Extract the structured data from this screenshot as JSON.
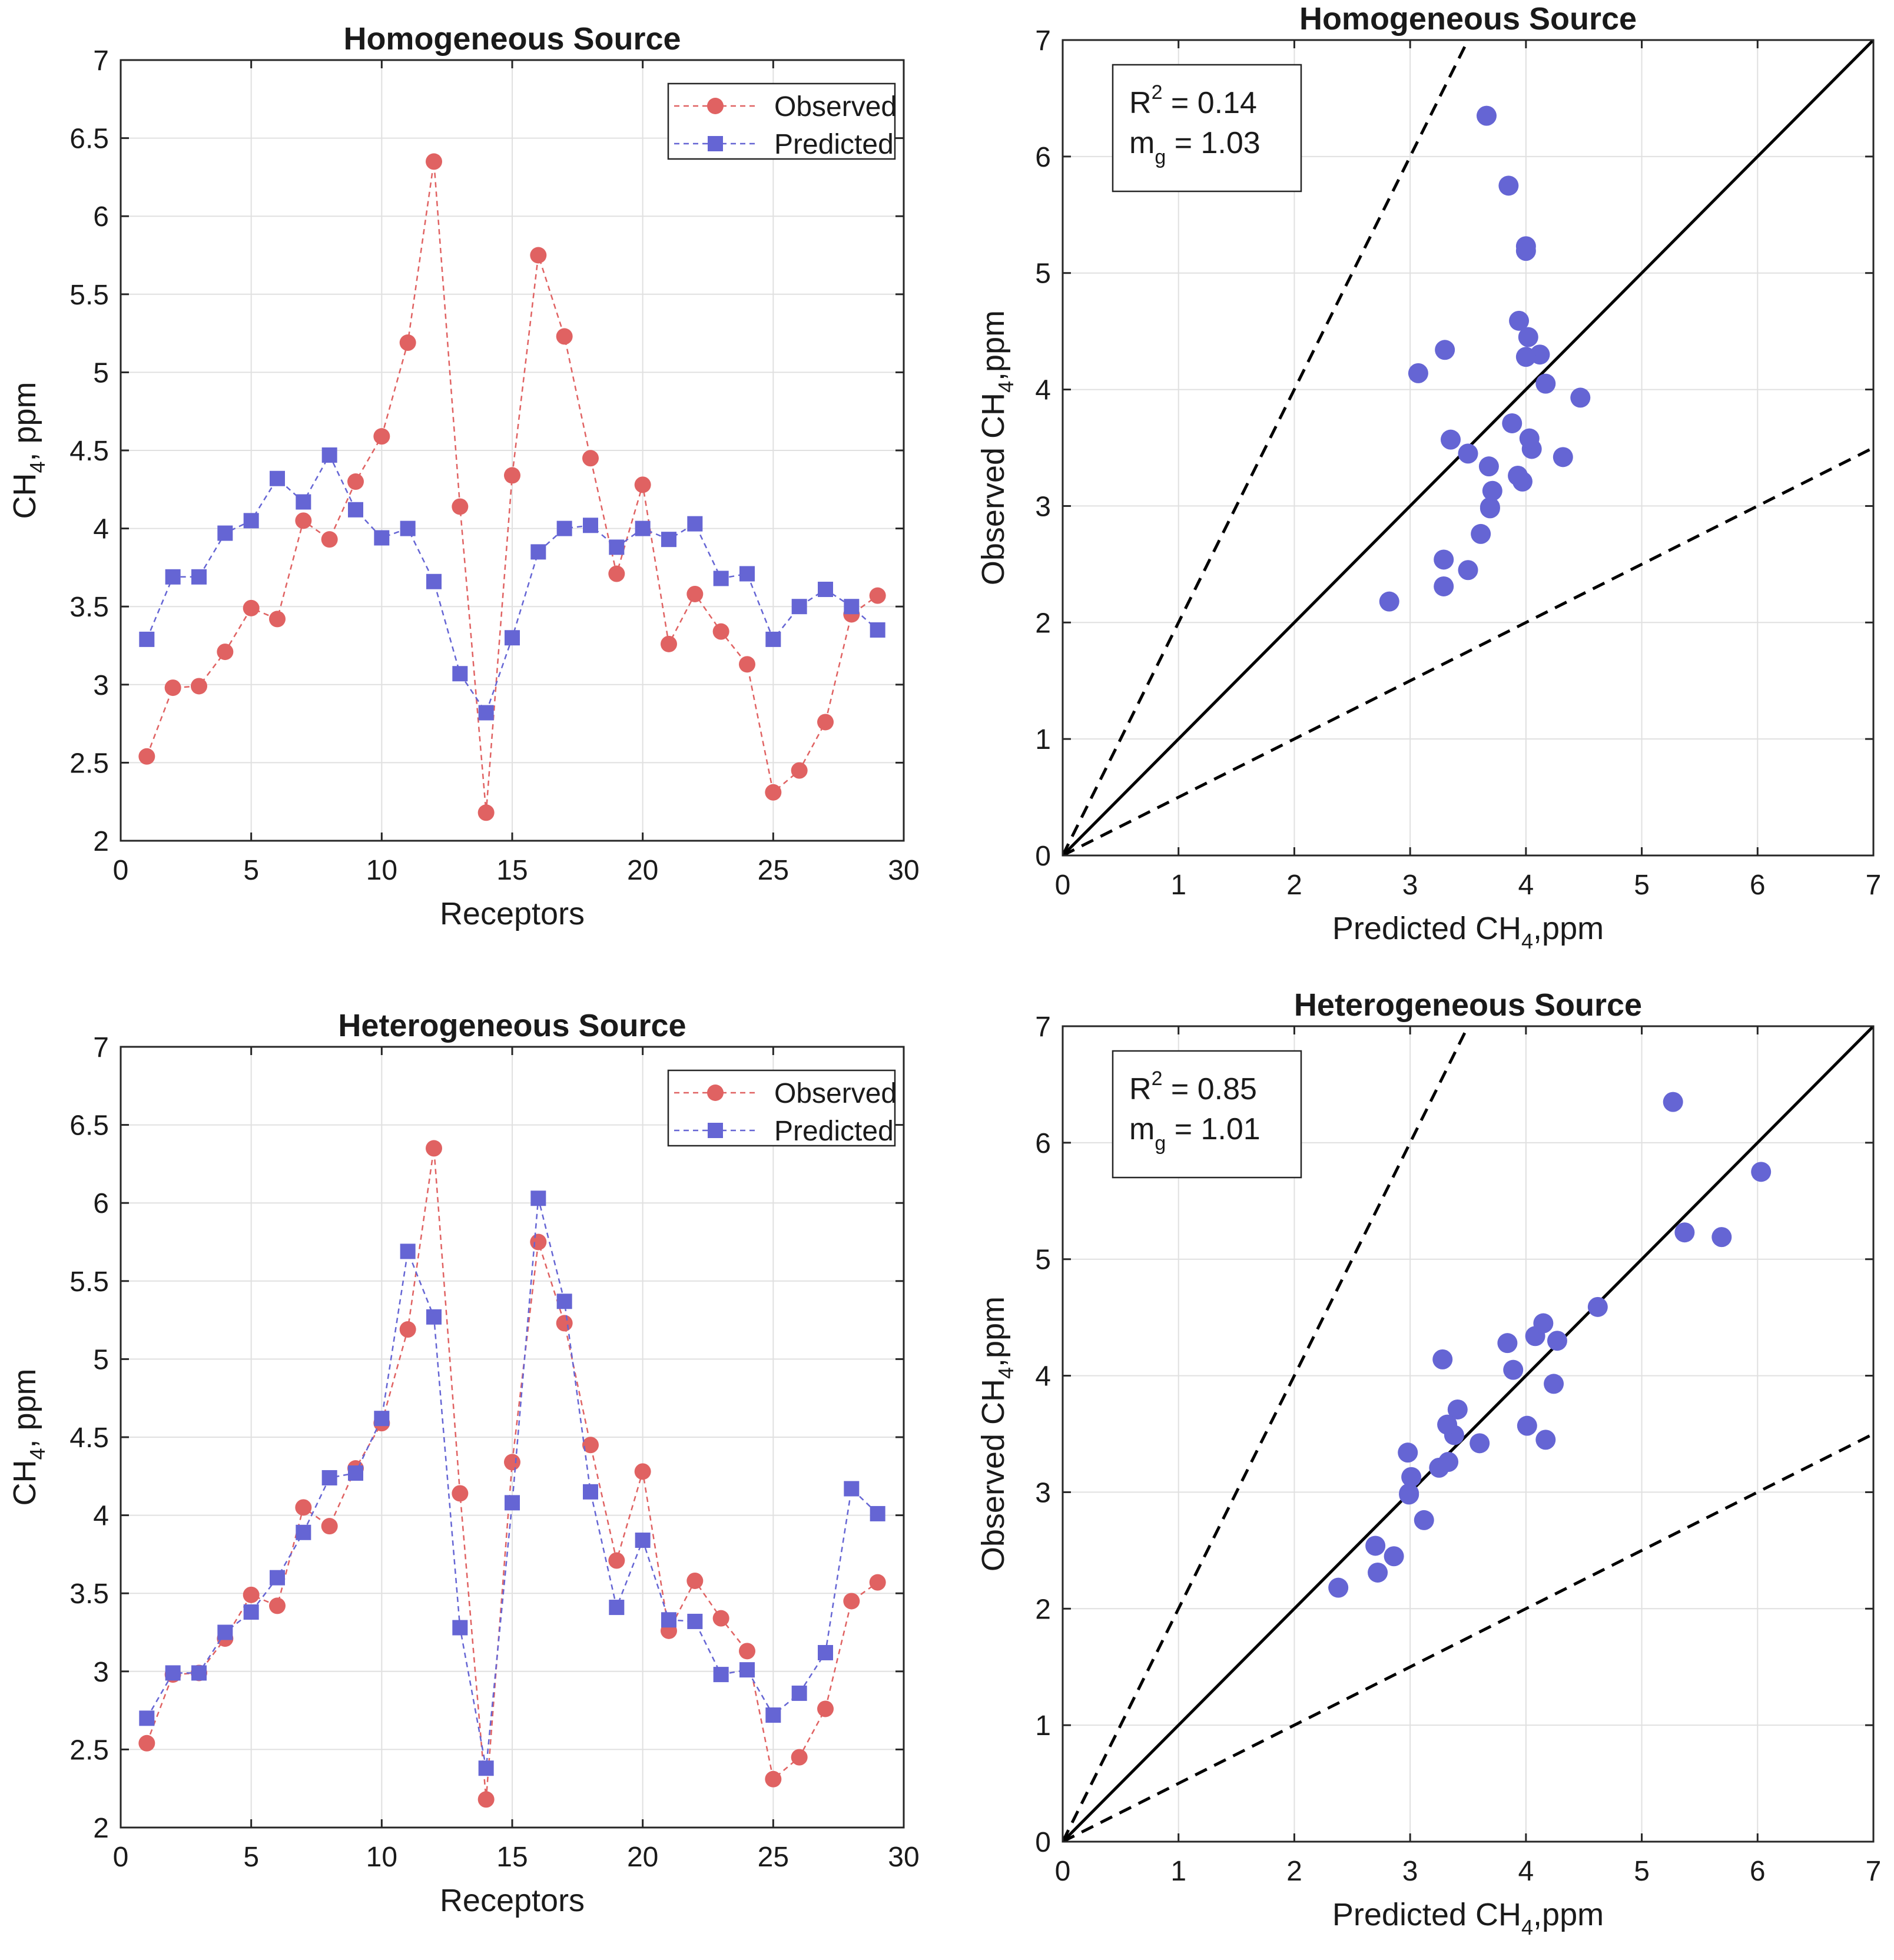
{
  "colors": {
    "observed": "#e06262",
    "predicted": "#6565d4",
    "axis": "#262626",
    "grid": "#e0e0e0",
    "line": "#000000"
  },
  "chart_data": [
    {
      "id": "top-left",
      "type": "line",
      "title": "Homogeneous Source",
      "xlabel": "Receptors",
      "ylabel": {
        "main": "CH",
        "sub": "4",
        "rest": ", ppm"
      },
      "xlim": [
        0,
        30
      ],
      "ylim": [
        2,
        7
      ],
      "xticks": [
        0,
        5,
        10,
        15,
        20,
        25,
        30
      ],
      "xtick_labels": [
        "0",
        "5",
        "10",
        "15",
        "20",
        "25",
        "30"
      ],
      "yticks": [
        2,
        2.5,
        3,
        3.5,
        4,
        4.5,
        5,
        5.5,
        6,
        6.5,
        7
      ],
      "ytick_labels": [
        "2",
        "2.5",
        "3",
        "3.5",
        "4",
        "4.5",
        "5",
        "5.5",
        "6",
        "6.5",
        "7"
      ],
      "legend": [
        "Observed",
        "Predicted"
      ],
      "legend_position": "top-right",
      "grid": true,
      "x": [
        1,
        2,
        3,
        4,
        5,
        6,
        7,
        8,
        9,
        10,
        11,
        12,
        13,
        14,
        15,
        16,
        17,
        18,
        19,
        20,
        21,
        22,
        23,
        24,
        25,
        26,
        27,
        28,
        29
      ],
      "series": [
        {
          "name": "Observed",
          "marker": "circle",
          "values": [
            2.54,
            2.98,
            2.99,
            3.21,
            3.49,
            3.42,
            4.05,
            3.93,
            4.3,
            4.59,
            5.19,
            6.35,
            4.14,
            2.18,
            4.34,
            5.75,
            5.23,
            4.45,
            3.71,
            4.28,
            3.26,
            3.58,
            3.34,
            3.13,
            2.31,
            2.45,
            2.76,
            3.45,
            3.57
          ]
        },
        {
          "name": "Predicted",
          "marker": "square",
          "values": [
            3.29,
            3.69,
            3.69,
            3.97,
            4.05,
            4.32,
            4.17,
            4.47,
            4.12,
            3.94,
            4.0,
            3.66,
            3.07,
            2.82,
            3.3,
            3.85,
            4.0,
            4.02,
            3.88,
            4.0,
            3.93,
            4.03,
            3.68,
            3.71,
            3.29,
            3.5,
            3.61,
            3.5,
            3.35
          ]
        }
      ]
    },
    {
      "id": "top-right",
      "type": "scatter",
      "title": "Homogeneous Source",
      "xlabel": {
        "main": "Predicted CH",
        "sub": "4",
        "rest": ",ppm"
      },
      "ylabel": {
        "main": "Observed CH",
        "sub": "4",
        "rest": ",ppm"
      },
      "xlim": [
        0,
        7
      ],
      "ylim": [
        0,
        7
      ],
      "xticks": [
        0,
        1,
        2,
        3,
        4,
        5,
        6,
        7
      ],
      "xtick_labels": [
        "0",
        "1",
        "2",
        "3",
        "4",
        "5",
        "6",
        "7"
      ],
      "yticks": [
        0,
        1,
        2,
        3,
        4,
        5,
        6,
        7
      ],
      "ytick_labels": [
        "0",
        "1",
        "2",
        "3",
        "4",
        "5",
        "6",
        "7"
      ],
      "grid": true,
      "reference_lines": [
        {
          "slope": 1,
          "style": "solid"
        },
        {
          "slope": 2,
          "style": "dashed"
        },
        {
          "slope": 0.5,
          "style": "dashed"
        }
      ],
      "annotation": {
        "r2_label": "R",
        "r2_sup": "2",
        "r2_value": " = 0.14",
        "mg_label": "m",
        "mg_sub": "g",
        "mg_value": " = 1.03"
      },
      "x": [
        3.29,
        3.69,
        3.69,
        3.97,
        4.05,
        4.32,
        4.17,
        4.47,
        4.12,
        3.94,
        4.0,
        3.66,
        3.07,
        2.82,
        3.3,
        3.85,
        4.0,
        4.02,
        3.88,
        4.0,
        3.93,
        4.03,
        3.68,
        3.71,
        3.29,
        3.5,
        3.61,
        3.5,
        3.35
      ],
      "y": [
        2.54,
        2.98,
        2.99,
        3.21,
        3.49,
        3.42,
        4.05,
        3.93,
        4.3,
        4.59,
        5.19,
        6.35,
        4.14,
        2.18,
        4.34,
        5.75,
        5.23,
        4.45,
        3.71,
        4.28,
        3.26,
        3.58,
        3.34,
        3.13,
        2.31,
        2.45,
        2.76,
        3.45,
        3.57
      ]
    },
    {
      "id": "bottom-left",
      "type": "line",
      "title": "Heterogeneous Source",
      "xlabel": "Receptors",
      "ylabel": {
        "main": "CH",
        "sub": "4",
        "rest": ", ppm"
      },
      "xlim": [
        0,
        30
      ],
      "ylim": [
        2,
        7
      ],
      "xticks": [
        0,
        5,
        10,
        15,
        20,
        25,
        30
      ],
      "xtick_labels": [
        "0",
        "5",
        "10",
        "15",
        "20",
        "25",
        "30"
      ],
      "yticks": [
        2,
        2.5,
        3,
        3.5,
        4,
        4.5,
        5,
        5.5,
        6,
        6.5,
        7
      ],
      "ytick_labels": [
        "2",
        "2.5",
        "3",
        "3.5",
        "4",
        "4.5",
        "5",
        "5.5",
        "6",
        "6.5",
        "7"
      ],
      "legend": [
        "Observed",
        "Predicted"
      ],
      "legend_position": "top-right",
      "grid": true,
      "x": [
        1,
        2,
        3,
        4,
        5,
        6,
        7,
        8,
        9,
        10,
        11,
        12,
        13,
        14,
        15,
        16,
        17,
        18,
        19,
        20,
        21,
        22,
        23,
        24,
        25,
        26,
        27,
        28,
        29
      ],
      "series": [
        {
          "name": "Observed",
          "marker": "circle",
          "values": [
            2.54,
            2.98,
            2.99,
            3.21,
            3.49,
            3.42,
            4.05,
            3.93,
            4.3,
            4.59,
            5.19,
            6.35,
            4.14,
            2.18,
            4.34,
            5.75,
            5.23,
            4.45,
            3.71,
            4.28,
            3.26,
            3.58,
            3.34,
            3.13,
            2.31,
            2.45,
            2.76,
            3.45,
            3.57
          ]
        },
        {
          "name": "Predicted",
          "marker": "square",
          "values": [
            2.7,
            2.99,
            2.99,
            3.25,
            3.38,
            3.6,
            3.89,
            4.24,
            4.27,
            4.62,
            5.69,
            5.27,
            3.28,
            2.38,
            4.08,
            6.03,
            5.37,
            4.15,
            3.41,
            3.84,
            3.33,
            3.32,
            2.98,
            3.01,
            2.72,
            2.86,
            3.12,
            4.17,
            4.01
          ]
        }
      ]
    },
    {
      "id": "bottom-right",
      "type": "scatter",
      "title": "Heterogeneous Source",
      "xlabel": {
        "main": "Predicted CH",
        "sub": "4",
        "rest": ",ppm"
      },
      "ylabel": {
        "main": "Observed CH",
        "sub": "4",
        "rest": ",ppm"
      },
      "xlim": [
        0,
        7
      ],
      "ylim": [
        0,
        7
      ],
      "xticks": [
        0,
        1,
        2,
        3,
        4,
        5,
        6,
        7
      ],
      "xtick_labels": [
        "0",
        "1",
        "2",
        "3",
        "4",
        "5",
        "6",
        "7"
      ],
      "yticks": [
        0,
        1,
        2,
        3,
        4,
        5,
        6,
        7
      ],
      "ytick_labels": [
        "0",
        "1",
        "2",
        "3",
        "4",
        "5",
        "6",
        "7"
      ],
      "grid": true,
      "reference_lines": [
        {
          "slope": 1,
          "style": "solid"
        },
        {
          "slope": 2,
          "style": "dashed"
        },
        {
          "slope": 0.5,
          "style": "dashed"
        }
      ],
      "annotation": {
        "r2_label": "R",
        "r2_sup": "2",
        "r2_value": " = 0.85",
        "mg_label": "m",
        "mg_sub": "g",
        "mg_value": " = 1.01"
      },
      "x": [
        2.7,
        2.99,
        2.99,
        3.25,
        3.38,
        3.6,
        3.89,
        4.24,
        4.27,
        4.62,
        5.69,
        5.27,
        3.28,
        2.38,
        4.08,
        6.03,
        5.37,
        4.15,
        3.41,
        3.84,
        3.33,
        3.32,
        2.98,
        3.01,
        2.72,
        2.86,
        3.12,
        4.17,
        4.01
      ],
      "y": [
        2.54,
        2.98,
        2.99,
        3.21,
        3.49,
        3.42,
        4.05,
        3.93,
        4.3,
        4.59,
        5.19,
        6.35,
        4.14,
        2.18,
        4.34,
        5.75,
        5.23,
        4.45,
        3.71,
        4.28,
        3.26,
        3.58,
        3.34,
        3.13,
        2.31,
        2.45,
        2.76,
        3.45,
        3.57
      ]
    }
  ]
}
